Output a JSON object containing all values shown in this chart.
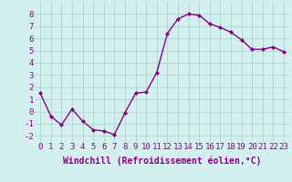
{
  "x": [
    0,
    1,
    2,
    3,
    4,
    5,
    6,
    7,
    8,
    9,
    10,
    11,
    12,
    13,
    14,
    15,
    16,
    17,
    18,
    19,
    20,
    21,
    22,
    23
  ],
  "y": [
    1.5,
    -0.4,
    -1.1,
    0.2,
    -0.8,
    -1.5,
    -1.6,
    -1.9,
    -0.1,
    1.5,
    1.6,
    3.2,
    6.4,
    7.6,
    8.0,
    7.9,
    7.2,
    6.9,
    6.5,
    5.9,
    5.1,
    5.1,
    5.3,
    4.9
  ],
  "line_color": "#880088",
  "marker": "D",
  "marker_size": 2,
  "bg_color": "#d4f0ee",
  "grid_color": "#b0d8d4",
  "xlabel": "Windchill (Refroidissement éolien,°C)",
  "xlabel_fontsize": 7,
  "xtick_labels": [
    "0",
    "1",
    "2",
    "3",
    "4",
    "5",
    "6",
    "7",
    "8",
    "9",
    "10",
    "11",
    "12",
    "13",
    "14",
    "15",
    "16",
    "17",
    "18",
    "19",
    "20",
    "21",
    "22",
    "23"
  ],
  "ylim": [
    -2.5,
    9.0
  ],
  "yticks": [
    -2,
    -1,
    0,
    1,
    2,
    3,
    4,
    5,
    6,
    7,
    8
  ],
  "tick_fontsize": 6.5,
  "line_width": 1.0
}
